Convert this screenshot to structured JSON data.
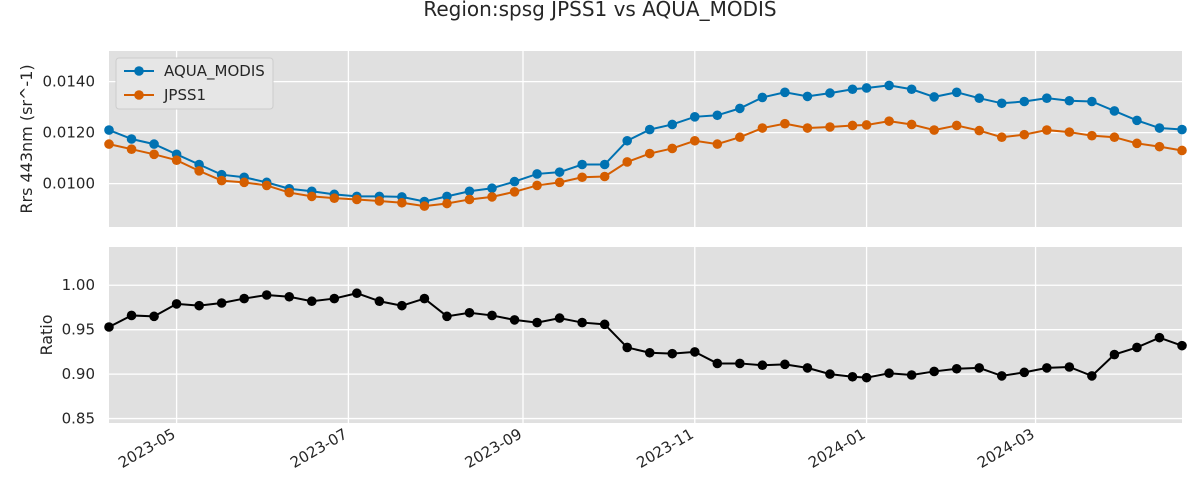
{
  "chart_data": {
    "title": "Region:spsg JPSS1 vs AQUA_MODIS",
    "type": "line",
    "x": [
      "2023-04-07",
      "2023-04-15",
      "2023-04-23",
      "2023-05-01",
      "2023-05-09",
      "2023-05-17",
      "2023-05-25",
      "2023-06-02",
      "2023-06-10",
      "2023-06-18",
      "2023-06-26",
      "2023-07-04",
      "2023-07-12",
      "2023-07-20",
      "2023-07-28",
      "2023-08-05",
      "2023-08-13",
      "2023-08-21",
      "2023-08-29",
      "2023-09-06",
      "2023-09-14",
      "2023-09-22",
      "2023-09-30",
      "2023-10-08",
      "2023-10-16",
      "2023-10-24",
      "2023-11-01",
      "2023-11-09",
      "2023-11-17",
      "2023-11-25",
      "2023-12-03",
      "2023-12-11",
      "2023-12-19",
      "2023-12-27",
      "2024-01-01",
      "2024-01-09",
      "2024-01-17",
      "2024-01-25",
      "2024-02-02",
      "2024-02-10",
      "2024-02-18",
      "2024-02-26",
      "2024-03-05",
      "2024-03-13",
      "2024-03-21",
      "2024-03-29",
      "2024-04-06",
      "2024-04-14",
      "2024-04-22"
    ],
    "xtick_labels": [
      "2023-05",
      "2023-07",
      "2023-09",
      "2023-11",
      "2024-01",
      "2024-03"
    ],
    "xtick_dates": [
      "2023-05-01",
      "2023-07-01",
      "2023-09-01",
      "2023-11-01",
      "2024-01-01",
      "2024-03-01"
    ],
    "xlim": [
      "2023-04-07",
      "2024-04-22"
    ],
    "grid": true,
    "panels": [
      {
        "ylabel": "Rrs 443nm (sr^-1)",
        "ylim": [
          0.0083,
          0.0152
        ],
        "yticks": [
          0.01,
          0.012,
          0.014
        ],
        "ytick_labels": [
          "0.0100",
          "0.0120",
          "0.0140"
        ],
        "legend_position": "upper-left",
        "series": [
          {
            "name": "AQUA_MODIS",
            "color": "#0072b2",
            "values": [
              0.0121,
              0.01175,
              0.01155,
              0.01115,
              0.01075,
              0.01035,
              0.01025,
              0.01005,
              0.0098,
              0.0097,
              0.00958,
              0.0095,
              0.0095,
              0.00948,
              0.0093,
              0.0095,
              0.0097,
              0.00982,
              0.01008,
              0.01038,
              0.01045,
              0.01075,
              0.01075,
              0.01168,
              0.01212,
              0.01232,
              0.01262,
              0.01268,
              0.01295,
              0.01338,
              0.01358,
              0.01342,
              0.01355,
              0.0137,
              0.01375,
              0.01385,
              0.0137,
              0.0134,
              0.01358,
              0.01335,
              0.01315,
              0.01322,
              0.01335,
              0.01325,
              0.01322,
              0.01285,
              0.01248,
              0.01218,
              0.01212
            ]
          },
          {
            "name": "JPSS1",
            "color": "#d55e00",
            "values": [
              0.01155,
              0.01135,
              0.01115,
              0.01092,
              0.0105,
              0.01012,
              0.01005,
              0.00993,
              0.00965,
              0.0095,
              0.00943,
              0.00938,
              0.00932,
              0.00925,
              0.00912,
              0.00922,
              0.00938,
              0.00948,
              0.00968,
              0.00993,
              0.01005,
              0.01025,
              0.01028,
              0.01085,
              0.01118,
              0.01138,
              0.01168,
              0.01155,
              0.01182,
              0.01218,
              0.01235,
              0.01218,
              0.01222,
              0.01228,
              0.0123,
              0.01245,
              0.01232,
              0.0121,
              0.01228,
              0.01208,
              0.01182,
              0.01192,
              0.0121,
              0.01202,
              0.01188,
              0.01182,
              0.01158,
              0.01145,
              0.0113
            ]
          }
        ]
      },
      {
        "ylabel": "Ratio",
        "ylim": [
          0.845,
          1.043
        ],
        "yticks": [
          0.85,
          0.9,
          0.95,
          1.0
        ],
        "ytick_labels": [
          "0.85",
          "0.90",
          "0.95",
          "1.00"
        ],
        "series": [
          {
            "name": "",
            "color": "#000000",
            "values": [
              0.953,
              0.966,
              0.965,
              0.979,
              0.977,
              0.98,
              0.985,
              0.989,
              0.987,
              0.982,
              0.985,
              0.991,
              0.982,
              0.977,
              0.985,
              0.965,
              0.969,
              0.966,
              0.961,
              0.958,
              0.963,
              0.958,
              0.956,
              0.93,
              0.924,
              0.923,
              0.925,
              0.912,
              0.912,
              0.91,
              0.911,
              0.907,
              0.9,
              0.897,
              0.896,
              0.901,
              0.899,
              0.903,
              0.906,
              0.907,
              0.898,
              0.902,
              0.907,
              0.908,
              0.898,
              0.922,
              0.93,
              0.941,
              0.932
            ]
          }
        ]
      }
    ]
  }
}
